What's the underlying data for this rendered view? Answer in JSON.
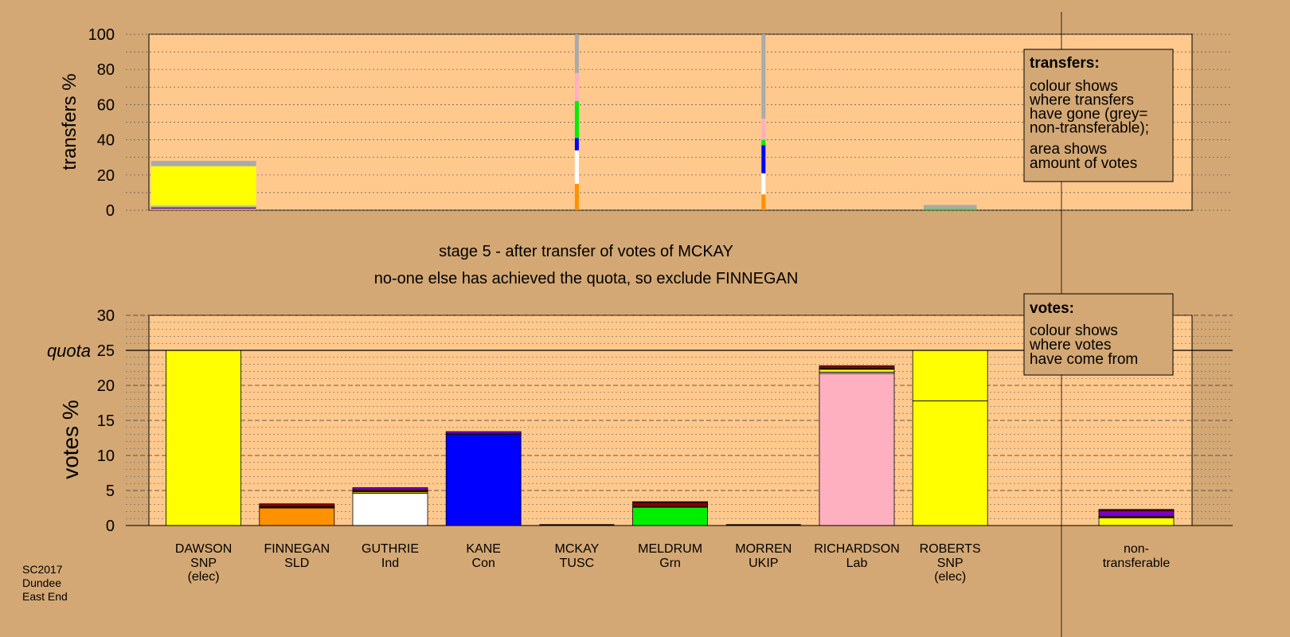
{
  "colors": {
    "background": "#d4a874",
    "plot_area": "#ffc98e",
    "SNP": "#ffff00",
    "SLD": "#ff9100",
    "Ind": "#ffffff",
    "Con": "#0000ff",
    "TUSC": "#8b0000",
    "Grn": "#00ee00",
    "UKIP": "#7a00cc",
    "Lab": "#ffb0c0",
    "non_transferable": "#aaaaaa"
  },
  "stage_text": {
    "line1": "stage 5 - after transfer of votes of MCKAY",
    "line2": "no-one else has achieved the quota, so exclude FINNEGAN"
  },
  "footer": [
    "SC2017",
    "Dundee",
    "East End"
  ],
  "transfers_box": {
    "title": "transfers:",
    "lines1": [
      "colour shows",
      "where transfers",
      "have gone (grey=",
      "non-transferable);"
    ],
    "lines2": [
      "area shows",
      "amount of votes"
    ]
  },
  "votes_box": {
    "title": "votes:",
    "lines": [
      "colour shows",
      "where votes",
      "have come from"
    ]
  },
  "chart_data": [
    {
      "type": "bar",
      "name": "transfers",
      "ylabel": "transfers %",
      "ylim": [
        0,
        100
      ],
      "yticks": [
        0,
        20,
        40,
        60,
        80,
        100
      ],
      "bars": [
        {
          "category": "DAWSON",
          "relative_width": 0.21,
          "segments": [
            {
              "party": "SLD",
              "value": 1
            },
            {
              "party": "Con",
              "value": 0.5
            },
            {
              "party": "Grn",
              "value": 0.5
            },
            {
              "party": "Lab",
              "value": 1
            },
            {
              "party": "SNP",
              "value": 22
            },
            {
              "party": "non_transferable",
              "value": 3
            }
          ]
        },
        {
          "category": "MCKAY",
          "relative_width": 0.008,
          "segments": [
            {
              "party": "SLD",
              "value": 15
            },
            {
              "party": "Ind",
              "value": 19
            },
            {
              "party": "Con",
              "value": 7
            },
            {
              "party": "Grn",
              "value": 21
            },
            {
              "party": "Lab",
              "value": 16
            },
            {
              "party": "non_transferable",
              "value": 22
            }
          ]
        },
        {
          "category": "MORREN",
          "relative_width": 0.008,
          "segments": [
            {
              "party": "SLD",
              "value": 9
            },
            {
              "party": "Ind",
              "value": 12
            },
            {
              "party": "Con",
              "value": 16
            },
            {
              "party": "Grn",
              "value": 3
            },
            {
              "party": "Lab",
              "value": 12
            },
            {
              "party": "non_transferable",
              "value": 48
            }
          ]
        },
        {
          "category": "ROBERTS",
          "relative_width": 0.106,
          "segments": [
            {
              "party": "Grn",
              "value": 0.7
            },
            {
              "party": "non_transferable",
              "value": 2.3
            }
          ]
        }
      ]
    },
    {
      "type": "bar",
      "name": "votes",
      "ylabel": "votes %",
      "ylim": [
        0,
        30
      ],
      "yticks": [
        0,
        5,
        10,
        15,
        20,
        25,
        30
      ],
      "quota": 25,
      "quota_label": "quota",
      "candidates": [
        {
          "name": "DAWSON",
          "party_label": "SNP",
          "status": "(elec)",
          "segments": [
            {
              "party": "SNP",
              "value": 25
            }
          ]
        },
        {
          "name": "FINNEGAN",
          "party_label": "SLD",
          "status": "",
          "segments": [
            {
              "party": "SLD",
              "value": 2.5
            },
            {
              "party": "SNP",
              "value": 0.1
            },
            {
              "party": "Lab",
              "value": 0.1
            },
            {
              "party": "TUSC",
              "value": 0.4
            }
          ]
        },
        {
          "name": "GUTHRIE",
          "party_label": "Ind",
          "status": "",
          "segments": [
            {
              "party": "Ind",
              "value": 4.6
            },
            {
              "party": "SNP",
              "value": 0.2
            },
            {
              "party": "Lab",
              "value": 0.1
            },
            {
              "party": "TUSC",
              "value": 0.2
            },
            {
              "party": "UKIP",
              "value": 0.3
            }
          ]
        },
        {
          "name": "KANE",
          "party_label": "Con",
          "status": "",
          "segments": [
            {
              "party": "Con",
              "value": 13.0
            },
            {
              "party": "TUSC",
              "value": 0.1
            },
            {
              "party": "UKIP",
              "value": 0.3
            }
          ]
        },
        {
          "name": "MCKAY",
          "party_label": "TUSC",
          "status": "",
          "segments": []
        },
        {
          "name": "MELDRUM",
          "party_label": "Grn",
          "status": "",
          "segments": [
            {
              "party": "Grn",
              "value": 2.6
            },
            {
              "party": "SNP",
              "value": 0.1
            },
            {
              "party": "TUSC",
              "value": 0.6
            },
            {
              "party": "UKIP",
              "value": 0.1
            }
          ]
        },
        {
          "name": "MORREN",
          "party_label": "UKIP",
          "status": "",
          "segments": []
        },
        {
          "name": "RICHARDSON",
          "party_label": "Lab",
          "status": "",
          "segments": [
            {
              "party": "Lab",
              "value": 21.7
            },
            {
              "party": "Ind",
              "value": 0.2
            },
            {
              "party": "SNP",
              "value": 0.4
            },
            {
              "party": "Con",
              "value": 0.1
            },
            {
              "party": "TUSC",
              "value": 0.4
            }
          ]
        },
        {
          "name": "ROBERTS",
          "party_label": "SNP",
          "status": "(elec)",
          "segments": [
            {
              "party": "SNP",
              "value": 17.8
            },
            {
              "party": "SNP",
              "value": 7.2
            }
          ]
        },
        {
          "name": "non-",
          "party_label": "transferable",
          "status": "",
          "gap_before": true,
          "segments": [
            {
              "party": "SNP",
              "value": 1.1
            },
            {
              "party": "TUSC",
              "value": 0.2
            },
            {
              "party": "UKIP",
              "value": 0.8
            },
            {
              "party": "TUSC",
              "value": 0.2
            }
          ]
        }
      ]
    }
  ]
}
